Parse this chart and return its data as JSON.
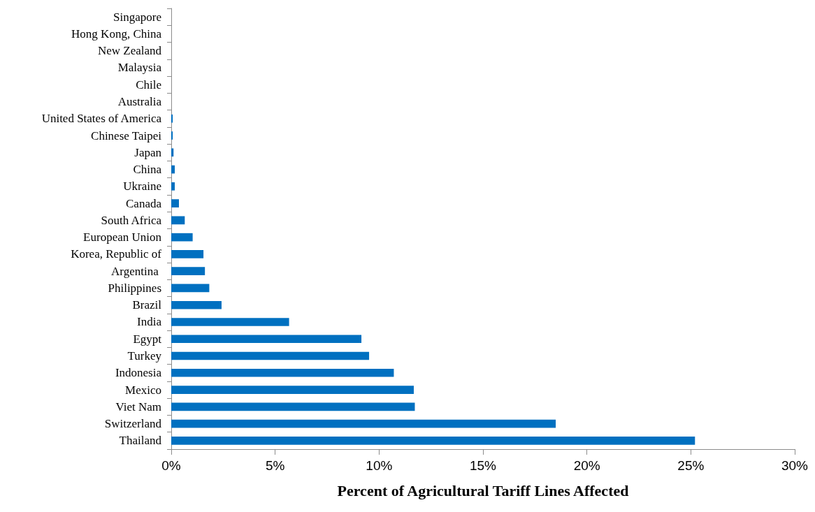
{
  "chart_data": {
    "type": "bar",
    "orientation": "horizontal",
    "xlabel": "Percent of Agricultural Tariff Lines Affected",
    "categories": [
      "Singapore",
      "Hong Kong, China",
      "New Zealand",
      "Malaysia",
      "Chile",
      "Australia",
      "United States of America",
      "Chinese Taipei",
      "Japan",
      "China",
      "Ukraine",
      "Canada",
      "South Africa",
      "European Union",
      "Korea, Republic of",
      "Argentina ",
      "Philippines",
      "Brazil",
      "India",
      "Egypt",
      "Turkey",
      "Indonesia",
      "Mexico",
      "Viet Nam",
      "Switzerland",
      "Thailand"
    ],
    "values": [
      0,
      0,
      0,
      0,
      0,
      0,
      0.07,
      0.07,
      0.11,
      0.17,
      0.17,
      0.37,
      0.65,
      1.03,
      1.55,
      1.62,
      1.83,
      2.42,
      5.67,
      9.15,
      9.52,
      10.71,
      11.67,
      11.72,
      18.5,
      25.2
    ],
    "color": "#0070c0",
    "xlim": [
      0,
      30
    ],
    "xticks": [
      {
        "value": 0,
        "label": "0%"
      },
      {
        "value": 5,
        "label": "5%"
      },
      {
        "value": 10,
        "label": "10%"
      },
      {
        "value": 15,
        "label": "15%"
      },
      {
        "value": 20,
        "label": "20%"
      },
      {
        "value": 25,
        "label": "25%"
      },
      {
        "value": 30,
        "label": "30%"
      }
    ],
    "grid": false
  }
}
